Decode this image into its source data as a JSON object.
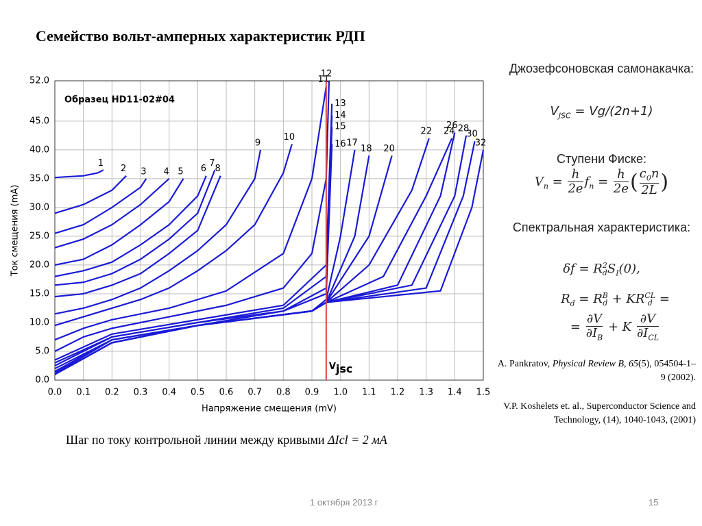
{
  "title": "Семейство вольт-амперных характеристик РДП",
  "chart_data": {
    "type": "line",
    "x_label": "Напряжение смещения (mV)",
    "y_label": "Ток смещения (mA)",
    "annotation": "Образец HD11-02#04",
    "vline": {
      "x": 0.95,
      "label": "V",
      "label_sub": "jsc",
      "color": "#e04040"
    },
    "xlim": [
      0,
      1.5
    ],
    "ylim": [
      0,
      52
    ],
    "xticks": [
      {
        "value": 0,
        "label": "0.0"
      },
      0.1,
      0.2,
      0.3,
      0.4,
      0.5,
      0.6,
      0.7,
      0.8,
      0.9,
      {
        "value": 1,
        "label": "1.0"
      },
      1.1,
      1.2,
      1.3,
      1.4,
      1.5
    ],
    "yticks": [
      {
        "value": 0,
        "label": "0.0"
      },
      {
        "value": 5,
        "label": "5.0"
      },
      {
        "value": 10,
        "label": "10.0"
      },
      {
        "value": 15,
        "label": "15.0"
      },
      {
        "value": 20,
        "label": "20.0"
      },
      {
        "value": 25,
        "label": "25.0"
      },
      {
        "value": 30,
        "label": "30.0"
      },
      {
        "value": 35,
        "label": "35.0"
      },
      {
        "value": 40,
        "label": "40.0"
      },
      {
        "value": 45,
        "label": "45.0"
      },
      {
        "value": 52,
        "label": "52.0"
      }
    ],
    "grid": true,
    "color": "#1a1ad6",
    "series": [
      {
        "name": "1",
        "x": [
          0,
          0.1,
          0.15,
          0.17
        ],
        "values": [
          35.2,
          35.5,
          36,
          36.5
        ]
      },
      {
        "name": "2",
        "x": [
          0,
          0.1,
          0.2,
          0.25
        ],
        "values": [
          29,
          30.5,
          33,
          35.5
        ]
      },
      {
        "name": "3",
        "x": [
          0,
          0.1,
          0.2,
          0.3,
          0.32
        ],
        "values": [
          25.5,
          27,
          30,
          33.5,
          35
        ]
      },
      {
        "name": "4",
        "x": [
          0,
          0.1,
          0.2,
          0.3,
          0.4
        ],
        "values": [
          23,
          24.5,
          27,
          30.5,
          35
        ]
      },
      {
        "name": "5",
        "x": [
          0,
          0.1,
          0.2,
          0.3,
          0.4,
          0.45
        ],
        "values": [
          20,
          21,
          23.5,
          27,
          31,
          35
        ]
      },
      {
        "name": "6",
        "x": [
          0,
          0.1,
          0.2,
          0.3,
          0.4,
          0.5,
          0.53
        ],
        "values": [
          18,
          19,
          20.5,
          23.5,
          27,
          32,
          35.5
        ]
      },
      {
        "name": "7",
        "x": [
          0,
          0.1,
          0.2,
          0.3,
          0.4,
          0.5,
          0.56
        ],
        "values": [
          16.5,
          17,
          18.5,
          21,
          24.5,
          29,
          36.5
        ]
      },
      {
        "name": "8",
        "x": [
          0,
          0.1,
          0.2,
          0.3,
          0.4,
          0.5,
          0.58
        ],
        "values": [
          14.5,
          15,
          16.5,
          18.5,
          22,
          26,
          35.5
        ]
      },
      {
        "name": "9",
        "x": [
          0,
          0.1,
          0.2,
          0.3,
          0.4,
          0.5,
          0.6,
          0.7,
          0.72
        ],
        "values": [
          11.5,
          12.5,
          14,
          16,
          19,
          22.5,
          27,
          35,
          40
        ]
      },
      {
        "name": "10",
        "x": [
          0,
          0.1,
          0.2,
          0.3,
          0.4,
          0.5,
          0.6,
          0.7,
          0.8,
          0.83
        ],
        "values": [
          9.5,
          11,
          12.5,
          14,
          16,
          19,
          22.5,
          27,
          36,
          41
        ]
      },
      {
        "name": "11",
        "x": [
          0,
          0.1,
          0.2,
          0.4,
          0.6,
          0.8,
          0.9,
          0.95
        ],
        "values": [
          7,
          9,
          10.5,
          12.5,
          15.5,
          22,
          35,
          51
        ]
      },
      {
        "name": "12",
        "x": [
          0,
          0.1,
          0.2,
          0.4,
          0.6,
          0.8,
          0.9,
          0.95,
          0.96
        ],
        "values": [
          5,
          7.5,
          9,
          11,
          13,
          16,
          22,
          35,
          52
        ]
      },
      {
        "name": "13",
        "x": [
          0,
          0.2,
          0.5,
          0.8,
          0.95,
          0.97
        ],
        "values": [
          3.5,
          8,
          10.5,
          13,
          20,
          48
        ]
      },
      {
        "name": "14",
        "x": [
          0,
          0.2,
          0.5,
          0.8,
          0.95,
          0.97
        ],
        "values": [
          3,
          7.5,
          10,
          12.5,
          18,
          46
        ]
      },
      {
        "name": "15",
        "x": [
          0,
          0.2,
          0.5,
          0.8,
          0.95,
          0.97
        ],
        "values": [
          2.5,
          7.5,
          10,
          12,
          16,
          44
        ]
      },
      {
        "name": "16",
        "x": [
          0,
          0.2,
          0.5,
          0.8,
          0.95,
          0.97
        ],
        "values": [
          2,
          7,
          9.5,
          12,
          15,
          41
        ]
      },
      {
        "name": "17",
        "x": [
          0,
          0.2,
          0.5,
          0.9,
          0.95,
          1,
          1.05
        ],
        "values": [
          1.5,
          7,
          9.5,
          12,
          14,
          25,
          40
        ]
      },
      {
        "name": "18",
        "x": [
          0,
          0.2,
          0.5,
          0.9,
          0.95,
          1.05,
          1.1
        ],
        "values": [
          1.2,
          7,
          9.5,
          12,
          13.5,
          25,
          39
        ]
      },
      {
        "name": "20",
        "x": [
          0,
          0.2,
          0.5,
          0.9,
          0.95,
          1.1,
          1.18
        ],
        "values": [
          1,
          6.5,
          9.5,
          12,
          13.5,
          25,
          39
        ]
      },
      {
        "name": "22",
        "x": [
          0,
          0.2,
          0.5,
          0.9,
          0.95,
          1.1,
          1.25,
          1.31
        ],
        "values": [
          1,
          6.5,
          9.5,
          12,
          13.5,
          20,
          33,
          42
        ]
      },
      {
        "name": "24",
        "x": [
          0,
          0.2,
          0.5,
          0.9,
          0.95,
          1.15,
          1.3,
          1.39
        ],
        "values": [
          1,
          6.5,
          9.5,
          12,
          13.5,
          18,
          32,
          42
        ]
      },
      {
        "name": "26",
        "x": [
          0,
          0.2,
          0.5,
          0.9,
          0.95,
          1.2,
          1.35,
          1.4
        ],
        "values": [
          1,
          6.5,
          9.5,
          12,
          13.5,
          16.5,
          32,
          43
        ]
      },
      {
        "name": "28",
        "x": [
          0,
          0.2,
          0.5,
          0.9,
          0.95,
          1.25,
          1.4,
          1.44
        ],
        "values": [
          1,
          6.5,
          9.5,
          12,
          13.5,
          16.5,
          32,
          42.5
        ]
      },
      {
        "name": "30",
        "x": [
          0,
          0.2,
          0.5,
          0.9,
          0.95,
          1.3,
          1.43,
          1.47
        ],
        "values": [
          1,
          6.5,
          9.5,
          12,
          13.5,
          16,
          32,
          41.5
        ]
      },
      {
        "name": "32",
        "x": [
          0,
          0.2,
          0.5,
          0.9,
          0.95,
          1.35,
          1.46,
          1.5
        ],
        "values": [
          1,
          6.5,
          9.5,
          12,
          13.5,
          15.5,
          30,
          40
        ]
      }
    ]
  },
  "caption": [
    "Шаг по току контрольной линии между кривыми ",
    "ΔIcl = 2 мА"
  ],
  "side": {
    "h1": "Джозефсоновская самонакачка:",
    "f1": [
      "V",
      "JSC",
      " = Vg/(2n+1)"
    ],
    "h2": "Ступени Фиске:",
    "f2": [
      "V",
      "n",
      " = ",
      "h",
      "2e",
      "f",
      "n",
      " = ",
      "h",
      "2e",
      "(",
      "c",
      "0",
      "n",
      "2L",
      ")"
    ],
    "h3": "Спектральная характеристика:",
    "f3": [
      "δf = R",
      "d",
      "2",
      "S",
      "I",
      "(0),"
    ],
    "f4": [
      "R",
      "d",
      " = R",
      "B",
      "d",
      " + KR",
      "CL",
      "d",
      " ="
    ],
    "f5": [
      "= ",
      "∂V",
      "∂I",
      "B",
      " + K ",
      "∂V",
      "∂I",
      "CL"
    ],
    "ref1": [
      "A. Pankratov, ",
      "Physical Review B",
      ", ",
      "65",
      "(5), 054504-1–9 (2002)."
    ],
    "ref2": "V.P. Koshelets et. al., Superconductor Science and Technology, (14), 1040-1043, (2001)"
  },
  "footer": {
    "date": "1 октября 2013 г",
    "page": "15"
  }
}
